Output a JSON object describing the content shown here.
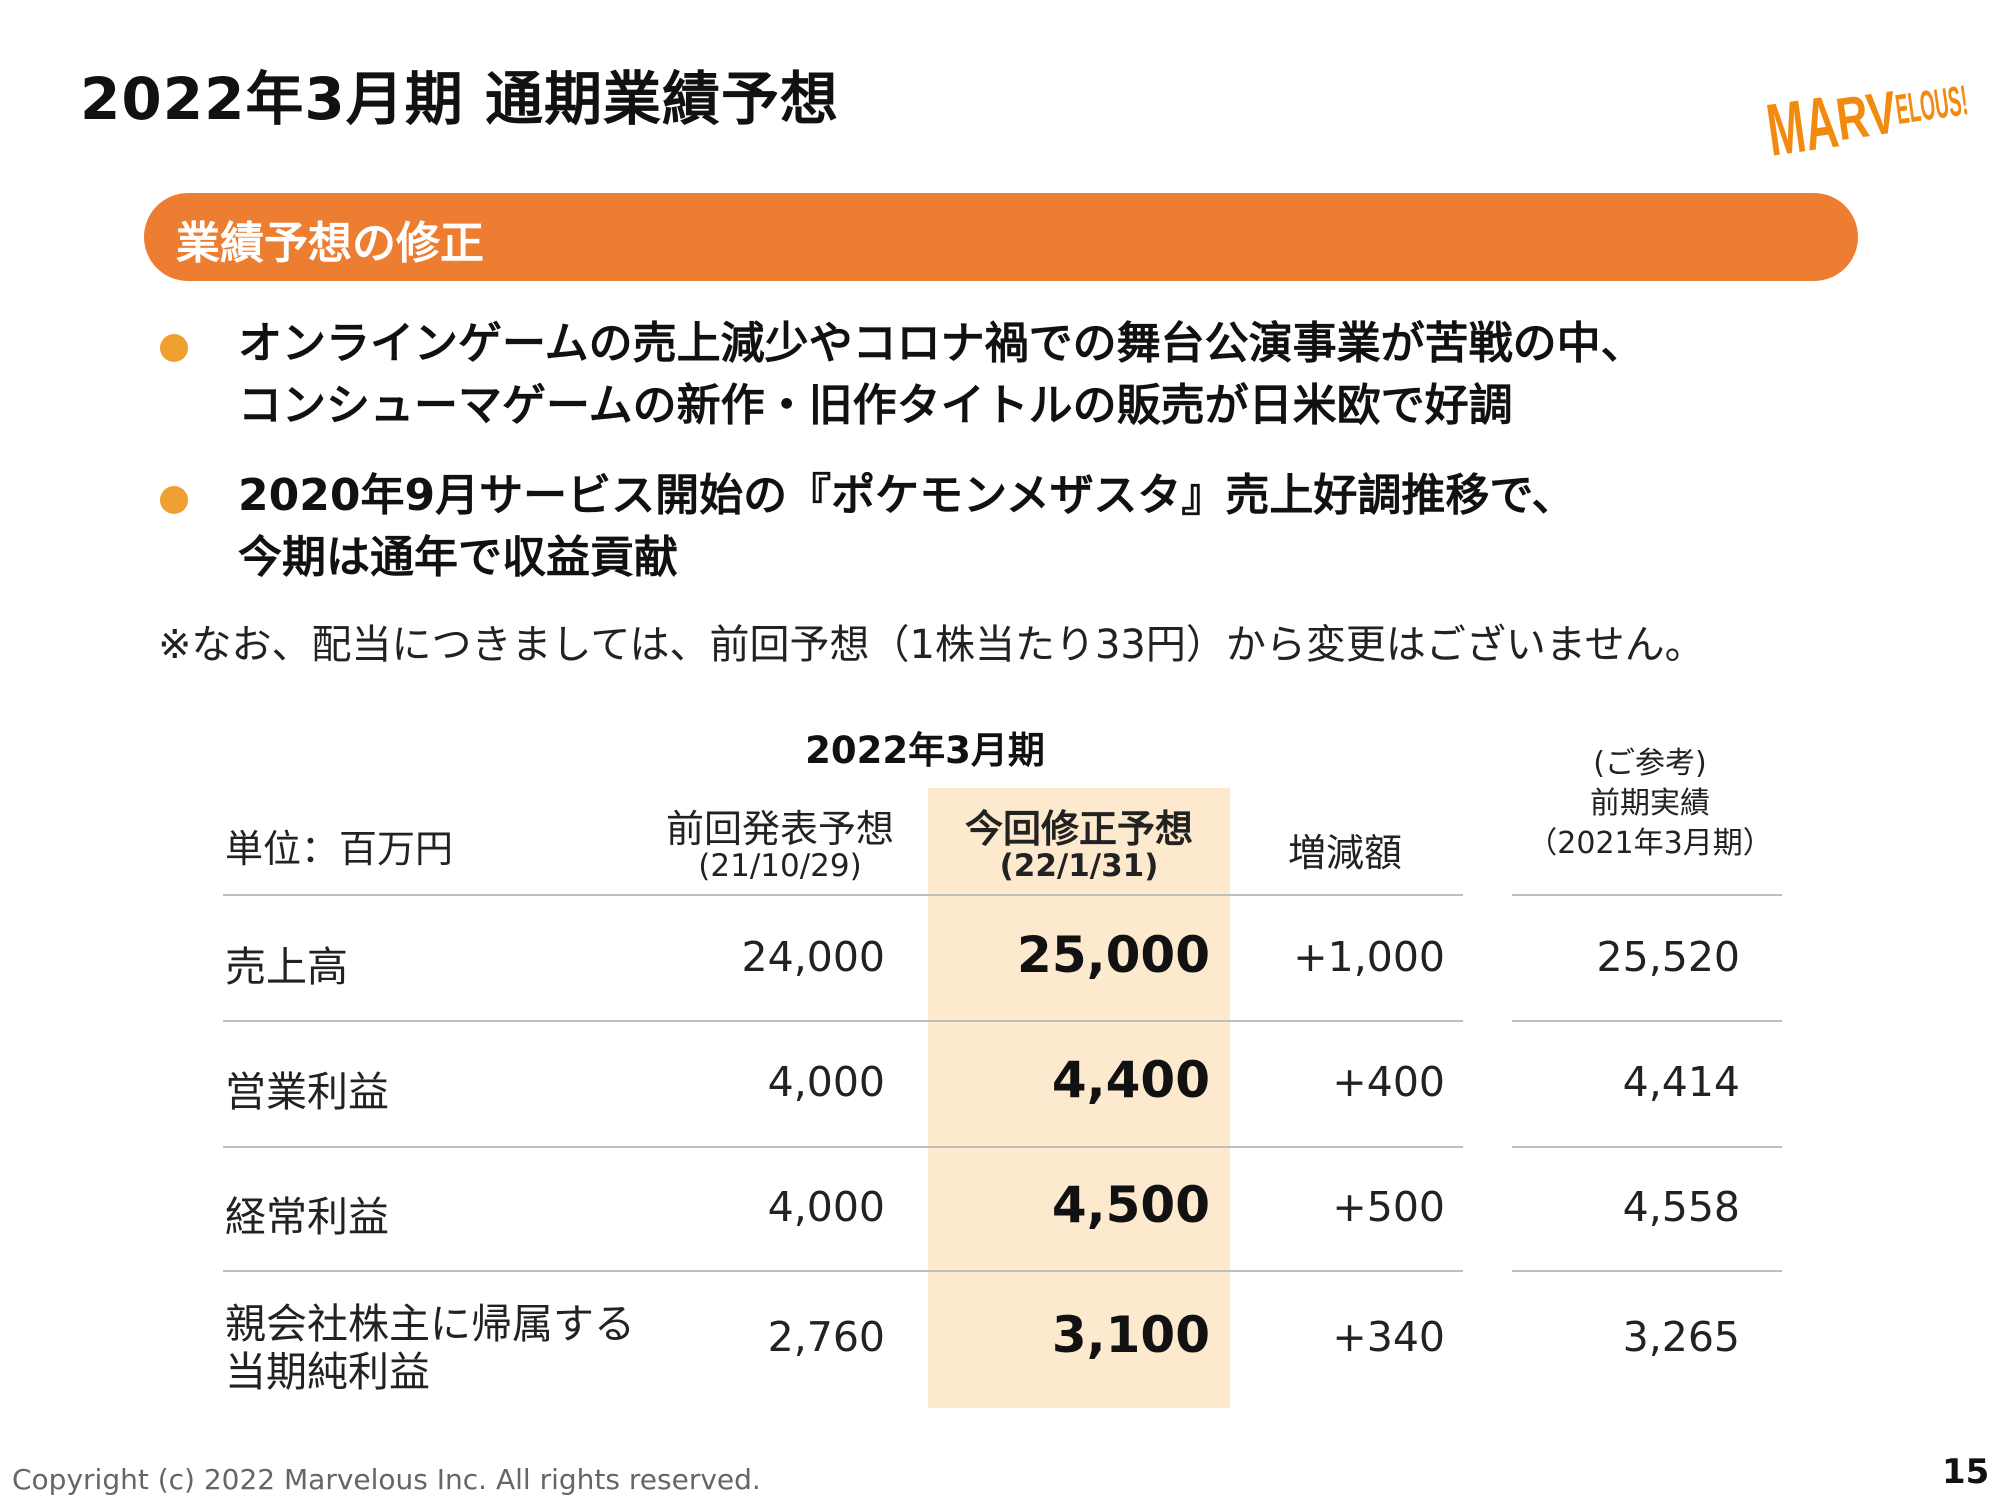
{
  "page": {
    "title": "2022年3月期 通期業績予想",
    "number": "15",
    "copyright": "Copyright (c) 2022 Marvelous Inc. All rights reserved.",
    "logo_text": "MARVELOUS!"
  },
  "section": {
    "heading": "業績予想の修正"
  },
  "bullets": [
    {
      "lines": [
        "オンラインゲームの売上減少やコロナ禍での舞台公演事業が苦戦の中、",
        "コンシューマゲームの新作・旧作タイトルの販売が日米欧で好調"
      ]
    },
    {
      "lines": [
        "2020年9月サービス開始の『ポケモンメザスタ』売上好調推移で、",
        "今期は通年で収益貢献"
      ]
    }
  ],
  "note": "※なお、配当につきましては、前回予想（1株当たり33円）から変更はございません。",
  "table": {
    "period_header": "2022年3月期",
    "unit_label": "単位：百万円",
    "col_prev": {
      "label": "前回発表予想",
      "date": "(21/10/29)"
    },
    "col_current": {
      "label": "今回修正予想",
      "date": "(22/1/31)"
    },
    "col_diff": {
      "label": "増減額"
    },
    "col_ref": {
      "line1": "(ご参考)",
      "line2": "前期実績",
      "line3": "（2021年3月期）"
    },
    "rows": [
      {
        "label": [
          "売上高"
        ],
        "prev": "24,000",
        "current": "25,000",
        "diff": "+1,000",
        "ref": "25,520"
      },
      {
        "label": [
          "営業利益"
        ],
        "prev": "4,000",
        "current": "4,400",
        "diff": "+400",
        "ref": "4,414"
      },
      {
        "label": [
          "経常利益"
        ],
        "prev": "4,000",
        "current": "4,500",
        "diff": "+500",
        "ref": "4,558"
      },
      {
        "label": [
          "親会社株主に帰属する",
          "当期純利益"
        ],
        "prev": "2,760",
        "current": "3,100",
        "diff": "+340",
        "ref": "3,265"
      }
    ]
  },
  "colors": {
    "accent": "#ED7D31",
    "bullet": "#F0A030",
    "highlight": "#FCE9CE"
  }
}
